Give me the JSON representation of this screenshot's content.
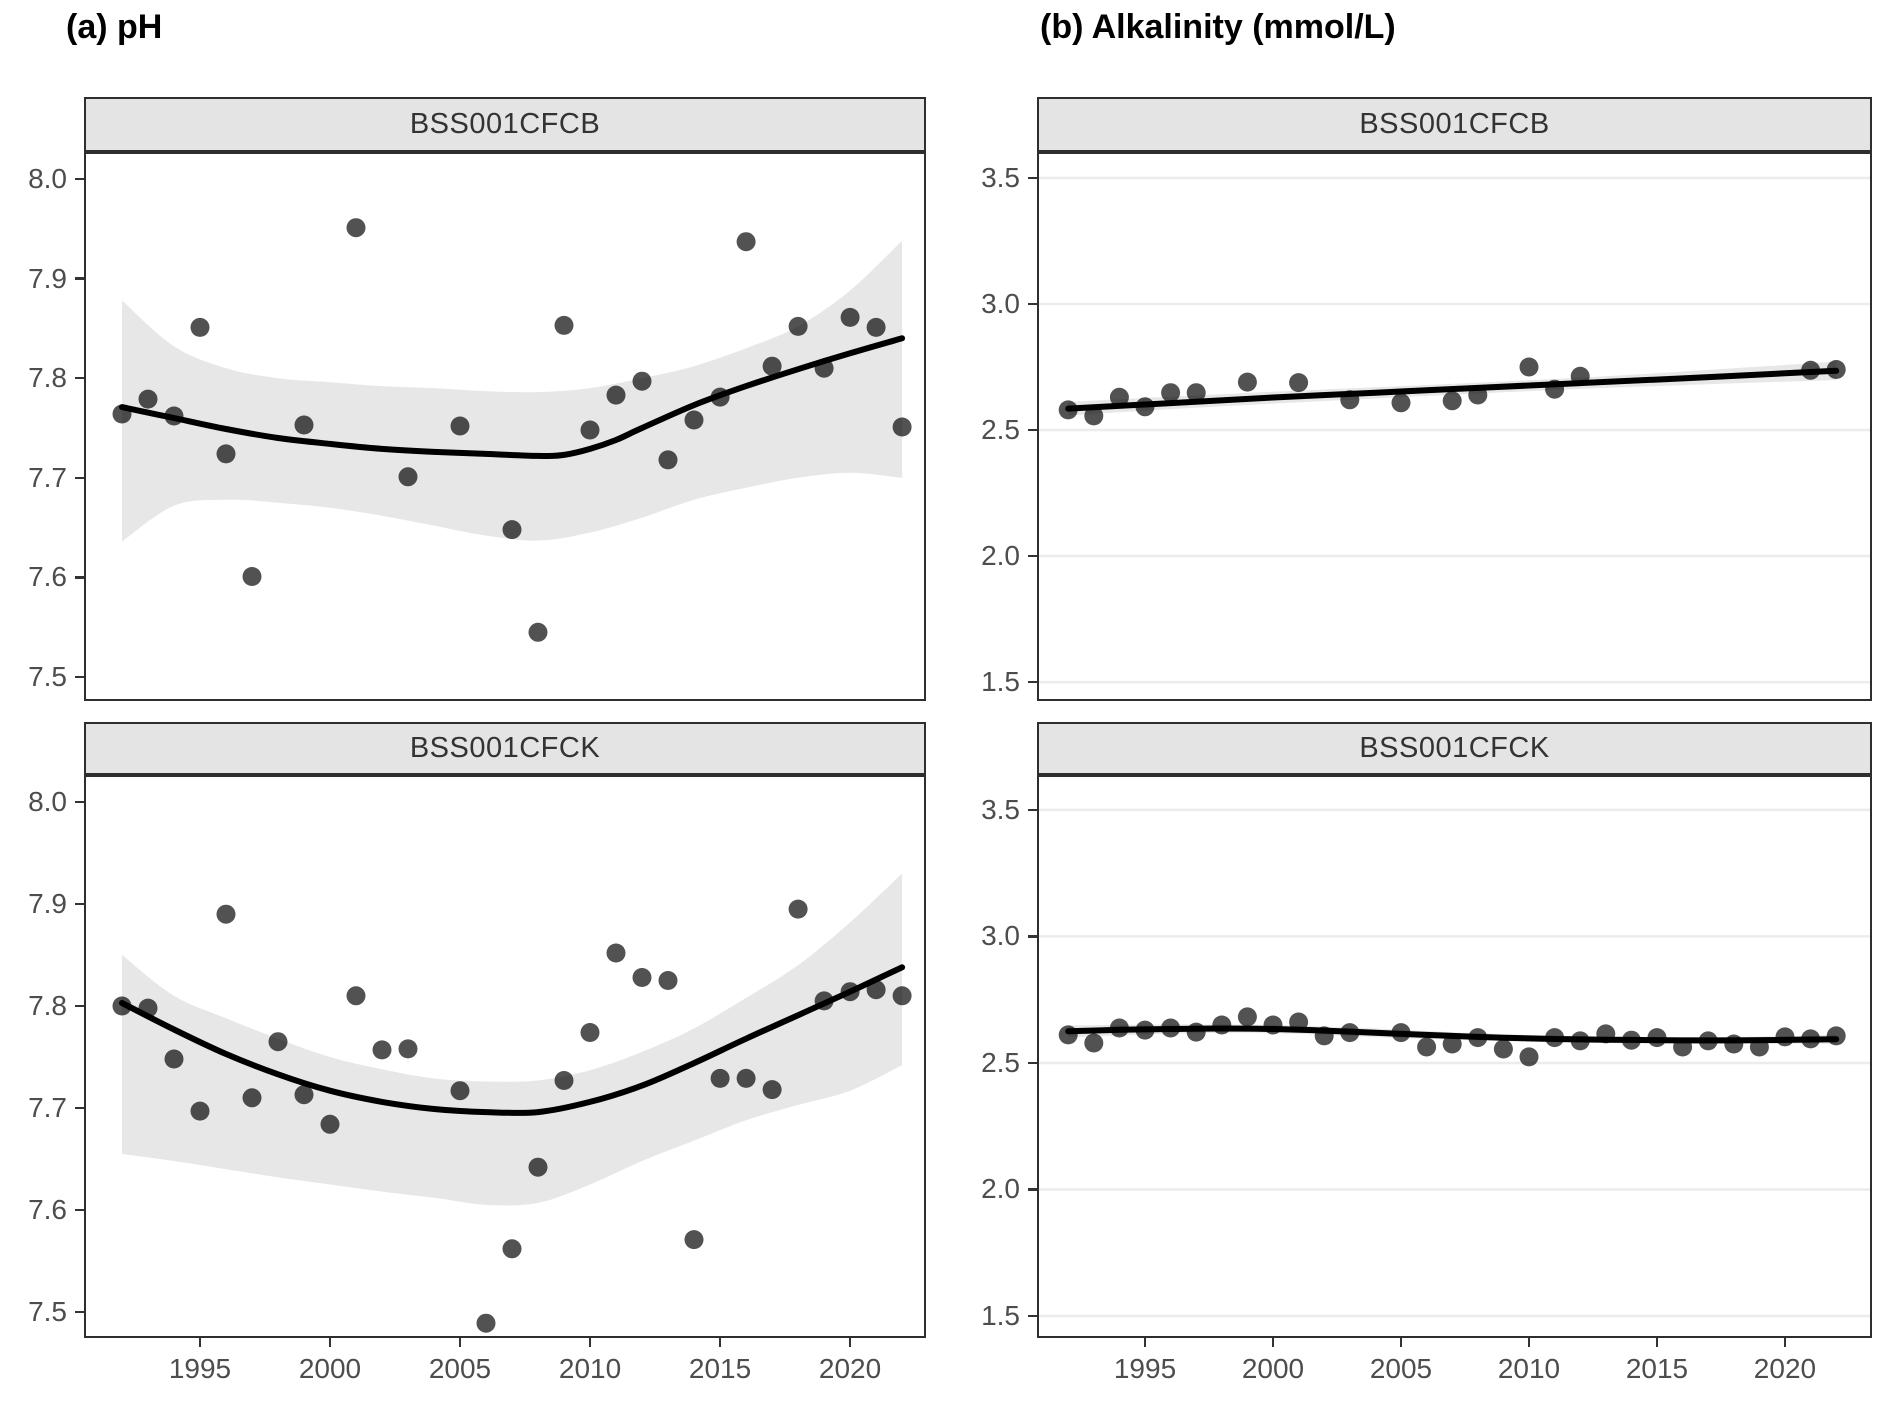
{
  "titles": {
    "left": "(a) pH",
    "right": "(b) Alkalinity (mmol/L)"
  },
  "chart_data": {
    "type": "scatter",
    "description": "Faceted time-series scatter plots with loess trend lines and confidence bands",
    "x_ticks": [
      1995,
      2000,
      2005,
      2010,
      2015,
      2020
    ],
    "panels": [
      {
        "facet": "BSS001CFCB",
        "measure": "pH",
        "col": 0,
        "row": 0,
        "grid": false,
        "xdomain": [
          1990.54,
          2022.92
        ],
        "ydomain": [
          7.476,
          8.027
        ],
        "yticks": [
          8.0,
          7.9,
          7.8,
          7.7,
          7.6,
          7.5
        ],
        "points": [
          [
            1992,
            7.764
          ],
          [
            1993,
            7.779
          ],
          [
            1994,
            7.762
          ],
          [
            1995,
            7.851
          ],
          [
            1996,
            7.724
          ],
          [
            1997,
            7.601
          ],
          [
            1999,
            7.753
          ],
          [
            2001,
            7.951
          ],
          [
            2003,
            7.701
          ],
          [
            2005,
            7.752
          ],
          [
            2007,
            7.648
          ],
          [
            2008,
            7.545
          ],
          [
            2009,
            7.853
          ],
          [
            2010,
            7.748
          ],
          [
            2011,
            7.783
          ],
          [
            2012,
            7.797
          ],
          [
            2013,
            7.718
          ],
          [
            2014,
            7.758
          ],
          [
            2015,
            7.781
          ],
          [
            2016,
            7.937
          ],
          [
            2017,
            7.812
          ],
          [
            2018,
            7.852
          ],
          [
            2019,
            7.81
          ],
          [
            2020,
            7.861
          ],
          [
            2021,
            7.851
          ],
          [
            2022,
            7.751
          ]
        ],
        "line": [
          [
            1992,
            7.771
          ],
          [
            1994,
            7.76
          ],
          [
            1996,
            7.749
          ],
          [
            1998,
            7.74
          ],
          [
            2000,
            7.734
          ],
          [
            2002,
            7.729
          ],
          [
            2004,
            7.726
          ],
          [
            2006,
            7.724
          ],
          [
            2008,
            7.722
          ],
          [
            2009,
            7.723
          ],
          [
            2010,
            7.729
          ],
          [
            2011,
            7.738
          ],
          [
            2012,
            7.75
          ],
          [
            2014,
            7.773
          ],
          [
            2016,
            7.792
          ],
          [
            2018,
            7.809
          ],
          [
            2020,
            7.825
          ],
          [
            2022,
            7.84
          ]
        ],
        "band_hi": [
          [
            1992,
            7.878
          ],
          [
            1994,
            7.832
          ],
          [
            1996,
            7.81
          ],
          [
            1998,
            7.8
          ],
          [
            2000,
            7.796
          ],
          [
            2002,
            7.792
          ],
          [
            2004,
            7.79
          ],
          [
            2006,
            7.787
          ],
          [
            2008,
            7.786
          ],
          [
            2010,
            7.79
          ],
          [
            2012,
            7.8
          ],
          [
            2014,
            7.812
          ],
          [
            2016,
            7.83
          ],
          [
            2018,
            7.852
          ],
          [
            2020,
            7.888
          ],
          [
            2022,
            7.938
          ]
        ],
        "band_lo": [
          [
            1992,
            7.636
          ],
          [
            1994,
            7.672
          ],
          [
            1996,
            7.678
          ],
          [
            1998,
            7.675
          ],
          [
            2000,
            7.67
          ],
          [
            2002,
            7.662
          ],
          [
            2004,
            7.652
          ],
          [
            2006,
            7.642
          ],
          [
            2008,
            7.637
          ],
          [
            2010,
            7.645
          ],
          [
            2012,
            7.66
          ],
          [
            2014,
            7.678
          ],
          [
            2016,
            7.69
          ],
          [
            2018,
            7.7
          ],
          [
            2020,
            7.705
          ],
          [
            2022,
            7.7
          ]
        ]
      },
      {
        "facet": "BSS001CFCB",
        "measure": "Alkalinity (mmol/L)",
        "col": 1,
        "row": 0,
        "grid": true,
        "xdomain": [
          1990.78,
          2023.4
        ],
        "ydomain": [
          1.425,
          3.603
        ],
        "yticks": [
          3.5,
          3.0,
          2.5,
          2.0,
          1.5
        ],
        "points": [
          [
            1992,
            2.58
          ],
          [
            1993,
            2.556
          ],
          [
            1994,
            2.63
          ],
          [
            1995,
            2.592
          ],
          [
            1996,
            2.648
          ],
          [
            1997,
            2.648
          ],
          [
            1999,
            2.69
          ],
          [
            2001,
            2.688
          ],
          [
            2003,
            2.62
          ],
          [
            2005,
            2.608
          ],
          [
            2007,
            2.616
          ],
          [
            2008,
            2.639
          ],
          [
            2010,
            2.75
          ],
          [
            2011,
            2.662
          ],
          [
            2012,
            2.713
          ],
          [
            2021,
            2.737
          ],
          [
            2022,
            2.74
          ]
        ],
        "line": [
          [
            1992,
            2.585
          ],
          [
            1996,
            2.607
          ],
          [
            2000,
            2.629
          ],
          [
            2004,
            2.648
          ],
          [
            2008,
            2.667
          ],
          [
            2012,
            2.686
          ],
          [
            2016,
            2.705
          ],
          [
            2020,
            2.725
          ],
          [
            2022,
            2.735
          ]
        ],
        "band_hi": [
          [
            1992,
            2.612
          ],
          [
            1996,
            2.632
          ],
          [
            2000,
            2.652
          ],
          [
            2004,
            2.67
          ],
          [
            2008,
            2.688
          ],
          [
            2012,
            2.708
          ],
          [
            2016,
            2.732
          ],
          [
            2020,
            2.758
          ],
          [
            2022,
            2.772
          ]
        ],
        "band_lo": [
          [
            1992,
            2.558
          ],
          [
            1996,
            2.583
          ],
          [
            2000,
            2.605
          ],
          [
            2004,
            2.625
          ],
          [
            2008,
            2.645
          ],
          [
            2012,
            2.663
          ],
          [
            2016,
            2.678
          ],
          [
            2020,
            2.692
          ],
          [
            2022,
            2.698
          ]
        ]
      },
      {
        "facet": "BSS001CFCK",
        "measure": "pH",
        "col": 0,
        "row": 1,
        "grid": false,
        "xdomain": [
          1990.54,
          2022.92
        ],
        "ydomain": [
          7.4745,
          8.0265
        ],
        "yticks": [
          8.0,
          7.9,
          7.8,
          7.7,
          7.6,
          7.5
        ],
        "points": [
          [
            1992,
            7.8
          ],
          [
            1993,
            7.798
          ],
          [
            1994,
            7.748
          ],
          [
            1995,
            7.697
          ],
          [
            1996,
            7.89
          ],
          [
            1997,
            7.71
          ],
          [
            1998,
            7.765
          ],
          [
            1999,
            7.713
          ],
          [
            2000,
            7.684
          ],
          [
            2001,
            7.81
          ],
          [
            2002,
            7.757
          ],
          [
            2003,
            7.758
          ],
          [
            2005,
            7.717
          ],
          [
            2006,
            7.489
          ],
          [
            2007,
            7.562
          ],
          [
            2008,
            7.642
          ],
          [
            2009,
            7.727
          ],
          [
            2010,
            7.774
          ],
          [
            2011,
            7.852
          ],
          [
            2012,
            7.828
          ],
          [
            2013,
            7.825
          ],
          [
            2014,
            7.571
          ],
          [
            2015,
            7.729
          ],
          [
            2016,
            7.729
          ],
          [
            2017,
            7.718
          ],
          [
            2018,
            7.895
          ],
          [
            2019,
            7.805
          ],
          [
            2020,
            7.814
          ],
          [
            2021,
            7.816
          ],
          [
            2022,
            7.81
          ]
        ],
        "line": [
          [
            1992,
            7.803
          ],
          [
            1994,
            7.777
          ],
          [
            1996,
            7.753
          ],
          [
            1998,
            7.733
          ],
          [
            2000,
            7.717
          ],
          [
            2002,
            7.706
          ],
          [
            2004,
            7.699
          ],
          [
            2006,
            7.696
          ],
          [
            2008,
            7.696
          ],
          [
            2010,
            7.706
          ],
          [
            2012,
            7.722
          ],
          [
            2014,
            7.744
          ],
          [
            2016,
            7.768
          ],
          [
            2018,
            7.791
          ],
          [
            2020,
            7.814
          ],
          [
            2022,
            7.838
          ]
        ],
        "band_hi": [
          [
            1992,
            7.85
          ],
          [
            1994,
            7.81
          ],
          [
            1996,
            7.788
          ],
          [
            1998,
            7.768
          ],
          [
            2000,
            7.75
          ],
          [
            2002,
            7.738
          ],
          [
            2004,
            7.729
          ],
          [
            2006,
            7.726
          ],
          [
            2008,
            7.727
          ],
          [
            2010,
            7.737
          ],
          [
            2012,
            7.755
          ],
          [
            2014,
            7.778
          ],
          [
            2016,
            7.808
          ],
          [
            2018,
            7.84
          ],
          [
            2020,
            7.882
          ],
          [
            2022,
            7.93
          ]
        ],
        "band_lo": [
          [
            1992,
            7.655
          ],
          [
            1994,
            7.648
          ],
          [
            1996,
            7.64
          ],
          [
            1998,
            7.632
          ],
          [
            2000,
            7.625
          ],
          [
            2002,
            7.618
          ],
          [
            2004,
            7.612
          ],
          [
            2006,
            7.605
          ],
          [
            2008,
            7.607
          ],
          [
            2010,
            7.625
          ],
          [
            2012,
            7.648
          ],
          [
            2014,
            7.668
          ],
          [
            2016,
            7.688
          ],
          [
            2018,
            7.703
          ],
          [
            2020,
            7.717
          ],
          [
            2022,
            7.742
          ]
        ]
      },
      {
        "facet": "BSS001CFCK",
        "measure": "Alkalinity (mmol/L)",
        "col": 1,
        "row": 1,
        "grid": true,
        "xdomain": [
          1990.78,
          2023.4
        ],
        "ydomain": [
          1.413,
          3.638
        ],
        "yticks": [
          3.5,
          3.0,
          2.5,
          2.0,
          1.5
        ],
        "points": [
          [
            1992,
            2.611
          ],
          [
            1993,
            2.579
          ],
          [
            1994,
            2.638
          ],
          [
            1995,
            2.63
          ],
          [
            1996,
            2.638
          ],
          [
            1997,
            2.622
          ],
          [
            1998,
            2.65
          ],
          [
            1999,
            2.682
          ],
          [
            2000,
            2.65
          ],
          [
            2001,
            2.662
          ],
          [
            2002,
            2.607
          ],
          [
            2003,
            2.62
          ],
          [
            2005,
            2.62
          ],
          [
            2006,
            2.563
          ],
          [
            2007,
            2.575
          ],
          [
            2008,
            2.6
          ],
          [
            2009,
            2.555
          ],
          [
            2010,
            2.524
          ],
          [
            2011,
            2.6
          ],
          [
            2012,
            2.587
          ],
          [
            2013,
            2.615
          ],
          [
            2014,
            2.59
          ],
          [
            2015,
            2.6
          ],
          [
            2016,
            2.563
          ],
          [
            2017,
            2.587
          ],
          [
            2018,
            2.575
          ],
          [
            2019,
            2.563
          ],
          [
            2020,
            2.603
          ],
          [
            2021,
            2.595
          ],
          [
            2022,
            2.607
          ]
        ],
        "line": [
          [
            1992,
            2.625
          ],
          [
            1994,
            2.631
          ],
          [
            1996,
            2.634
          ],
          [
            1998,
            2.636
          ],
          [
            2000,
            2.634
          ],
          [
            2002,
            2.628
          ],
          [
            2004,
            2.619
          ],
          [
            2006,
            2.611
          ],
          [
            2008,
            2.603
          ],
          [
            2010,
            2.597
          ],
          [
            2012,
            2.593
          ],
          [
            2014,
            2.591
          ],
          [
            2016,
            2.589
          ],
          [
            2018,
            2.589
          ],
          [
            2020,
            2.591
          ],
          [
            2022,
            2.594
          ]
        ],
        "band_hi": [
          [
            1992,
            2.648
          ],
          [
            1996,
            2.652
          ],
          [
            2000,
            2.65
          ],
          [
            2004,
            2.636
          ],
          [
            2008,
            2.617
          ],
          [
            2012,
            2.606
          ],
          [
            2016,
            2.602
          ],
          [
            2020,
            2.606
          ],
          [
            2022,
            2.612
          ]
        ],
        "band_lo": [
          [
            1992,
            2.602
          ],
          [
            1996,
            2.616
          ],
          [
            2000,
            2.618
          ],
          [
            2004,
            2.602
          ],
          [
            2008,
            2.589
          ],
          [
            2012,
            2.58
          ],
          [
            2016,
            2.576
          ],
          [
            2020,
            2.576
          ],
          [
            2022,
            2.576
          ]
        ]
      }
    ]
  },
  "style": {
    "band_color": "#e4e4e4",
    "line_color": "#000000",
    "point_color": "#000000",
    "gridline_color": "#ececec",
    "strip_bg": "#e4e4e4",
    "border_color": "#2e2e2e",
    "tick_label_color": "#4d4d4d"
  }
}
